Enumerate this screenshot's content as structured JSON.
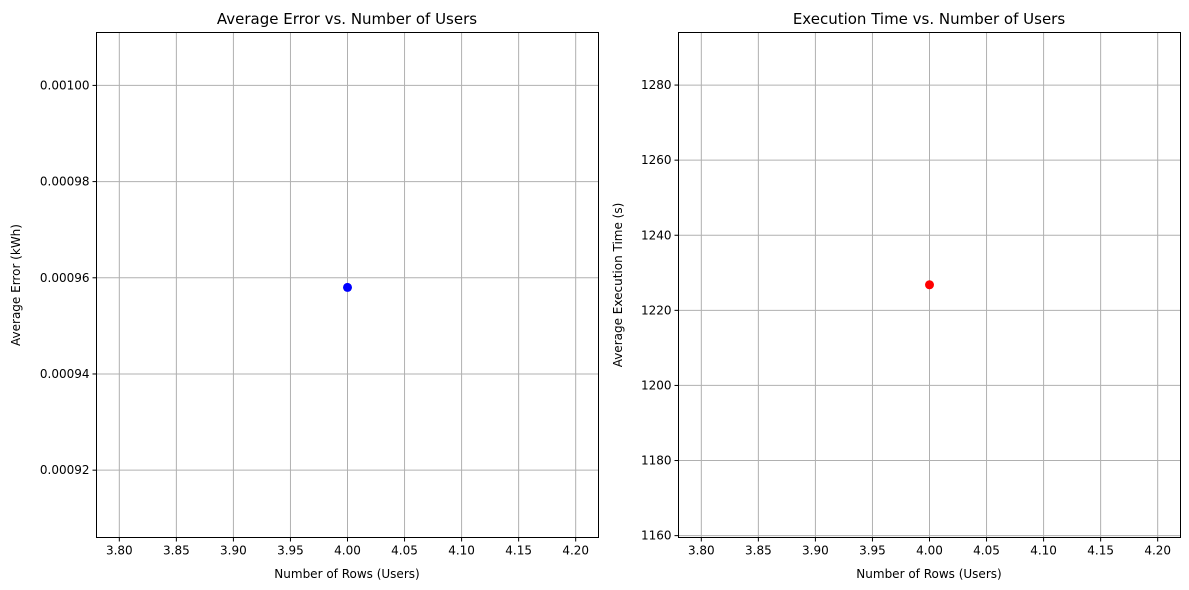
{
  "chart_data": [
    {
      "type": "scatter",
      "title": "Average Error vs. Number of Users",
      "xlabel": "Number of Rows (Users)",
      "ylabel": "Average Error (kWh)",
      "xlim": [
        3.78,
        4.22
      ],
      "ylim": [
        0.000906,
        0.001011
      ],
      "xticks": [
        3.8,
        3.85,
        3.9,
        3.95,
        4.0,
        4.05,
        4.1,
        4.15,
        4.2
      ],
      "xtick_labels": [
        "3.80",
        "3.85",
        "3.90",
        "3.95",
        "4.00",
        "4.05",
        "4.10",
        "4.15",
        "4.20"
      ],
      "yticks": [
        0.00092,
        0.00094,
        0.00096,
        0.00098,
        0.001
      ],
      "ytick_labels": [
        "0.00092",
        "0.00094",
        "0.00096",
        "0.00098",
        "0.00100"
      ],
      "grid": true,
      "color": "#0000ff",
      "points": [
        {
          "x": 4.0,
          "y": 0.000958
        }
      ]
    },
    {
      "type": "scatter",
      "title": "Execution Time vs. Number of Users",
      "xlabel": "Number of Rows (Users)",
      "ylabel": "Average Execution Time (s)",
      "xlim": [
        3.78,
        4.22
      ],
      "ylim": [
        1159.5,
        1294
      ],
      "xticks": [
        3.8,
        3.85,
        3.9,
        3.95,
        4.0,
        4.05,
        4.1,
        4.15,
        4.2
      ],
      "xtick_labels": [
        "3.80",
        "3.85",
        "3.90",
        "3.95",
        "4.00",
        "4.05",
        "4.10",
        "4.15",
        "4.20"
      ],
      "yticks": [
        1160,
        1180,
        1200,
        1220,
        1240,
        1260,
        1280
      ],
      "ytick_labels": [
        "1160",
        "1180",
        "1200",
        "1220",
        "1240",
        "1260",
        "1280"
      ],
      "grid": true,
      "color": "#ff0000",
      "points": [
        {
          "x": 4.0,
          "y": 1226.8
        }
      ]
    }
  ]
}
